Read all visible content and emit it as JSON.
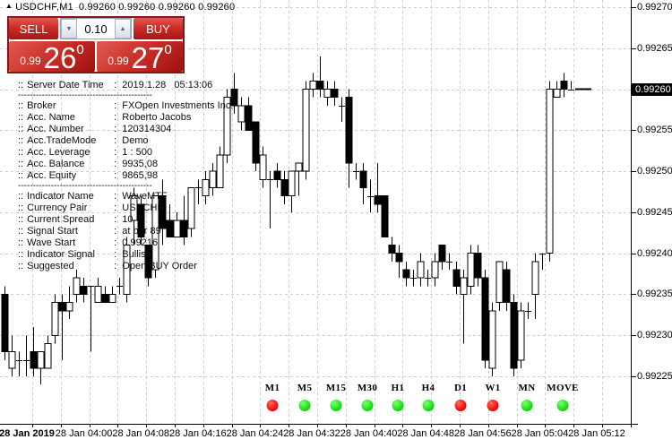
{
  "title": {
    "symbol": "USDCHF,M1",
    "ohlc": "0.99260 0.99260 0.99260 0.99260"
  },
  "trade_panel": {
    "sell_label": "SELL",
    "buy_label": "BUY",
    "volume": "0.10",
    "bid": {
      "prefix": "0.99",
      "big": "26",
      "sup": "0"
    },
    "ask": {
      "prefix": "0.99",
      "big": "27",
      "sup": "0"
    },
    "accent_red": "#c62b24"
  },
  "info_panel": {
    "prefix": "::",
    "colon": ":",
    "separator": "---------------------------------------------",
    "rows": [
      {
        "label": "Server Date Time",
        "value": "2019.1.28   05:13:06"
      },
      {
        "sep": true
      },
      {
        "label": "Broker",
        "value": "FXOpen Investments Inc."
      },
      {
        "label": "Acc. Name",
        "value": "Roberto Jacobs"
      },
      {
        "label": "Acc. Number",
        "value": "120314304"
      },
      {
        "label": "Acc.TradeMode",
        "value": "Demo"
      },
      {
        "label": "Acc. Leverage",
        "value": "1 : 500"
      },
      {
        "label": "Acc. Balance",
        "value": "9935,08"
      },
      {
        "label": "Acc. Equity",
        "value": "9865,98"
      },
      {
        "sep": true
      },
      {
        "label": "Indicator Name",
        "value": "WaveMTF"
      },
      {
        "label": "Currency Pair",
        "value": "USDCHF"
      },
      {
        "label": "Current Spread",
        "value": "10"
      },
      {
        "label": "Signal Start",
        "value": "at bar 89"
      },
      {
        "label": "Wave Start",
        "value": "0.99216"
      },
      {
        "label": "Indicator Signal",
        "value": "Bullish"
      },
      {
        "label": "Suggested",
        "value": "Open BUY Order"
      }
    ]
  },
  "timeframe_bar": {
    "dot_colors": {
      "red": "#ee0202",
      "green": "#0ad80a"
    },
    "buttons": [
      {
        "label": "M1",
        "dot": "red"
      },
      {
        "label": "M5",
        "dot": "green"
      },
      {
        "label": "M15",
        "dot": "green"
      },
      {
        "label": "M30",
        "dot": "green"
      },
      {
        "label": "H1",
        "dot": "green"
      },
      {
        "label": "H4",
        "dot": "green"
      },
      {
        "label": "D1",
        "dot": "red"
      },
      {
        "label": "W1",
        "dot": "red"
      },
      {
        "label": "MN",
        "dot": "green"
      },
      {
        "label": "MOVE",
        "dot": "green"
      }
    ]
  },
  "chart_data": {
    "type": "candlestick",
    "symbol": "USDCHF",
    "timeframe": "M1",
    "grid": true,
    "legend_position": "none",
    "price_axis": {
      "top_price": 0.9927,
      "step": 5e-05,
      "labels": [
        "0.99270",
        "0.99265",
        "0.99260",
        "0.99255",
        "0.99250",
        "0.99245",
        "0.99240",
        "0.99235",
        "0.99230",
        "0.99225"
      ],
      "current_price": 0.9926,
      "current_label": "0.99260"
    },
    "time_axis": {
      "labels": [
        "28 Jan 2019",
        "28 Jan 04:00",
        "28 Jan 04:08",
        "28 Jan 04:16",
        "28 Jan 04:24",
        "28 Jan 04:32",
        "28 Jan 04:40",
        "28 Jan 04:48",
        "28 Jan 04:56",
        "28 Jan 05:04",
        "28 Jan 05:12"
      ]
    },
    "candles": [
      [
        0.99235,
        0.99236,
        0.99227,
        0.99228
      ],
      [
        0.99226,
        0.9923,
        0.99225,
        0.99228
      ],
      [
        0.99227,
        0.99228,
        0.99225,
        0.99227
      ],
      [
        0.99227,
        0.9923,
        0.99225,
        0.99227
      ],
      [
        0.99228,
        0.99231,
        0.99225,
        0.99226
      ],
      [
        0.99226,
        0.99228,
        0.99224,
        0.99228
      ],
      [
        0.99226,
        0.9923,
        0.99226,
        0.99229
      ],
      [
        0.9923,
        0.99235,
        0.99229,
        0.99234
      ],
      [
        0.99234,
        0.99235,
        0.99227,
        0.99233
      ],
      [
        0.99233,
        0.99236,
        0.99232,
        0.99234
      ],
      [
        0.99235,
        0.99238,
        0.99234,
        0.99237
      ],
      [
        0.99236,
        0.99237,
        0.99234,
        0.99235
      ],
      [
        0.99236,
        0.99236,
        0.99228,
        0.99236
      ],
      [
        0.99234,
        0.99237,
        0.99234,
        0.99236
      ],
      [
        0.99235,
        0.99236,
        0.99234,
        0.99234
      ],
      [
        0.99234,
        0.99236,
        0.99234,
        0.99235
      ],
      [
        0.99236,
        0.99237,
        0.99235,
        0.99236
      ],
      [
        0.99235,
        0.99242,
        0.99234,
        0.99241
      ],
      [
        0.99244,
        0.99248,
        0.99241,
        0.99247
      ],
      [
        0.99246,
        0.99247,
        0.99241,
        0.99242
      ],
      [
        0.99241,
        0.99241,
        0.99236,
        0.99237
      ],
      [
        0.99238,
        0.99247,
        0.99237,
        0.99247
      ],
      [
        0.99247,
        0.99249,
        0.99241,
        0.99243
      ],
      [
        0.99244,
        0.99246,
        0.99242,
        0.99242
      ],
      [
        0.99242,
        0.99245,
        0.99242,
        0.99244
      ],
      [
        0.99244,
        0.99247,
        0.99241,
        0.99242
      ],
      [
        0.99243,
        0.99248,
        0.99242,
        0.99248
      ],
      [
        0.99248,
        0.99249,
        0.99246,
        0.99248
      ],
      [
        0.99247,
        0.9925,
        0.99246,
        0.99249
      ],
      [
        0.99248,
        0.99251,
        0.99247,
        0.9925
      ],
      [
        0.99248,
        0.99253,
        0.99248,
        0.99252
      ],
      [
        0.99252,
        0.9926,
        0.99251,
        0.99259
      ],
      [
        0.9926,
        0.99262,
        0.99257,
        0.99258
      ],
      [
        0.99256,
        0.99259,
        0.99255,
        0.99258
      ],
      [
        0.99258,
        0.99259,
        0.99255,
        0.99255
      ],
      [
        0.99256,
        0.99256,
        0.9925,
        0.99251
      ],
      [
        0.99249,
        0.99253,
        0.99248,
        0.99252
      ],
      [
        0.99249,
        0.9925,
        0.99243,
        0.99249
      ],
      [
        0.9925,
        0.99251,
        0.99248,
        0.99249
      ],
      [
        0.99249,
        0.9925,
        0.99246,
        0.99247
      ],
      [
        0.99247,
        0.9925,
        0.99245,
        0.9925
      ],
      [
        0.9925,
        0.99251,
        0.99247,
        0.99251
      ],
      [
        0.9925,
        0.99261,
        0.99249,
        0.9926
      ],
      [
        0.9926,
        0.99262,
        0.99259,
        0.99261
      ],
      [
        0.99261,
        0.99264,
        0.99259,
        0.9926
      ],
      [
        0.99259,
        0.99261,
        0.99258,
        0.9926
      ],
      [
        0.9926,
        0.99261,
        0.99258,
        0.99259
      ],
      [
        0.99258,
        0.99259,
        0.99256,
        0.99258
      ],
      [
        0.99259,
        0.9926,
        0.99248,
        0.99251
      ],
      [
        0.9925,
        0.99251,
        0.99249,
        0.9925
      ],
      [
        0.9925,
        0.99251,
        0.99246,
        0.99248
      ],
      [
        0.99247,
        0.99249,
        0.99245,
        0.99247
      ],
      [
        0.99247,
        0.99251,
        0.99245,
        0.99246
      ],
      [
        0.99247,
        0.99247,
        0.99242,
        0.99242
      ],
      [
        0.99241,
        0.99242,
        0.99239,
        0.9924
      ],
      [
        0.9924,
        0.99241,
        0.99237,
        0.99239
      ],
      [
        0.99238,
        0.99239,
        0.99236,
        0.99237
      ],
      [
        0.99237,
        0.99238,
        0.99236,
        0.99237
      ],
      [
        0.99237,
        0.9924,
        0.99236,
        0.99239
      ],
      [
        0.99237,
        0.99238,
        0.99236,
        0.99237
      ],
      [
        0.99237,
        0.9924,
        0.99236,
        0.99239
      ],
      [
        0.99241,
        0.99241,
        0.99238,
        0.99239
      ],
      [
        0.99239,
        0.9924,
        0.99238,
        0.99239
      ],
      [
        0.99238,
        0.99239,
        0.99235,
        0.99236
      ],
      [
        0.99235,
        0.99238,
        0.99229,
        0.99237
      ],
      [
        0.99236,
        0.99241,
        0.99235,
        0.9924
      ],
      [
        0.9924,
        0.99241,
        0.99236,
        0.99237
      ],
      [
        0.99237,
        0.99238,
        0.99226,
        0.99227
      ],
      [
        0.99226,
        0.99234,
        0.99225,
        0.99233
      ],
      [
        0.99234,
        0.99239,
        0.99233,
        0.99239
      ],
      [
        0.99238,
        0.99239,
        0.99233,
        0.99234
      ],
      [
        0.99234,
        0.99235,
        0.99225,
        0.99226
      ],
      [
        0.99227,
        0.99234,
        0.99226,
        0.99233
      ],
      [
        0.99233,
        0.99234,
        0.99232,
        0.99233
      ],
      [
        0.99235,
        0.9924,
        0.99232,
        0.99239
      ],
      [
        0.9924,
        0.9924,
        0.99238,
        0.9924
      ],
      [
        0.9924,
        0.99261,
        0.99239,
        0.9926
      ],
      [
        0.99259,
        0.99261,
        0.99259,
        0.9926
      ],
      [
        0.99261,
        0.99262,
        0.99259,
        0.9926
      ],
      [
        0.9926,
        0.99261,
        0.9926,
        0.9926
      ]
    ]
  }
}
